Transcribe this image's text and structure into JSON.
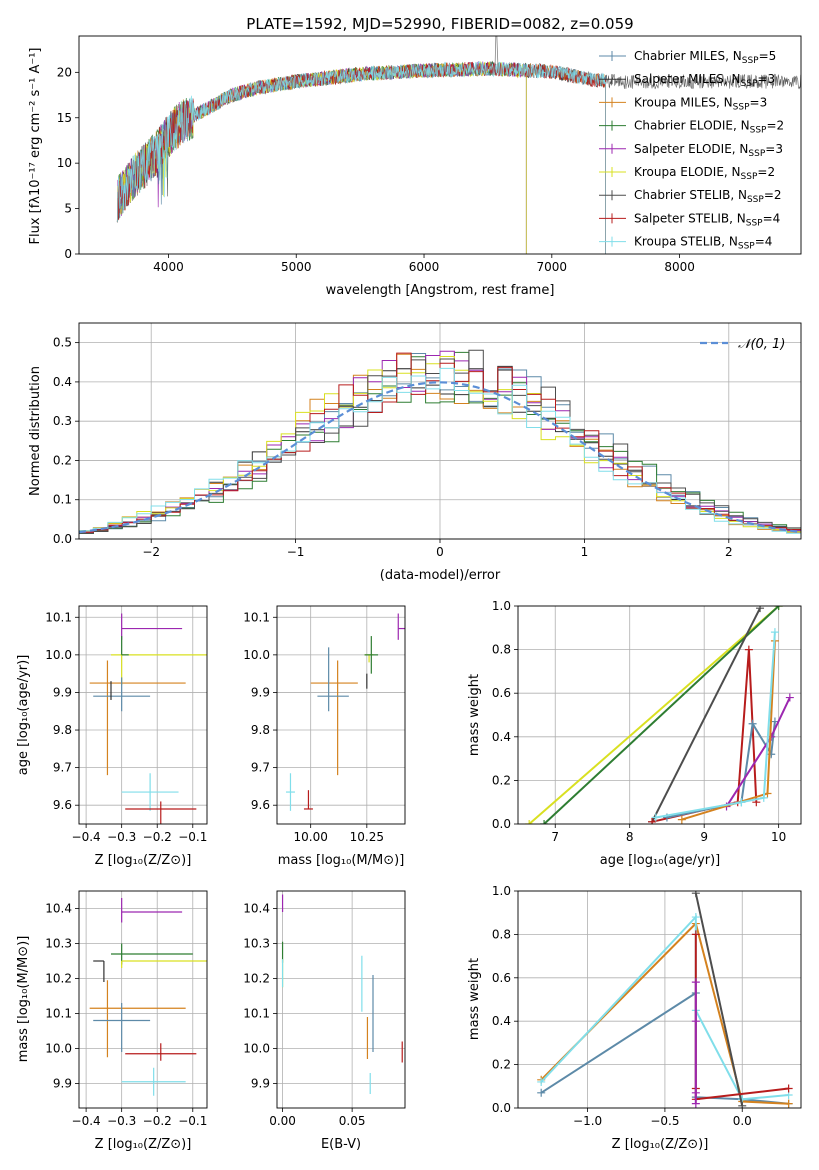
{
  "figure_title": "PLATE=1592, MJD=52990, FIBERID=0082, z=0.059",
  "colors": {
    "chabrier_miles": "#5d8aa8",
    "salpeter_miles": "#333333",
    "kroupa_miles": "#d4821f",
    "chabrier_elodie": "#2e7d32",
    "salpeter_elodie": "#9c27b0",
    "kroupa_elodie": "#d9e021",
    "chabrier_stelib": "#4d4d4d",
    "salpeter_stelib": "#b71c1c",
    "kroupa_stelib": "#80deea",
    "normal_curve": "#5b8ed6"
  },
  "chart_data": [
    {
      "id": "spectrum",
      "type": "line",
      "title": "PLATE=1592, MJD=52990, FIBERID=0082, z=0.059",
      "xlabel": "wavelength [Angstrom, rest frame]",
      "ylabel": "Flux [fλ10⁻¹⁷ erg cm⁻² s⁻¹ A⁻¹]",
      "xlim": [
        3300,
        8950
      ],
      "ylim": [
        0,
        24
      ],
      "xticks": [
        4000,
        5000,
        6000,
        7000,
        8000
      ],
      "yticks": [
        0,
        5,
        10,
        15,
        20
      ],
      "grid": false,
      "legend_position": "top-right",
      "series": [
        {
          "name": "Chabrier MILES, N",
          "sub": "SSP",
          "suffix": "=5",
          "color_key": "chabrier_miles"
        },
        {
          "name": "Salpeter MILES, N",
          "sub": "SSP",
          "suffix": "=3",
          "color_key": "salpeter_miles"
        },
        {
          "name": "Kroupa MILES, N",
          "sub": "SSP",
          "suffix": "=3",
          "color_key": "kroupa_miles"
        },
        {
          "name": "Chabrier ELODIE, N",
          "sub": "SSP",
          "suffix": "=2",
          "color_key": "chabrier_elodie"
        },
        {
          "name": "Salpeter ELODIE, N",
          "sub": "SSP",
          "suffix": "=3",
          "color_key": "salpeter_elodie"
        },
        {
          "name": "Kroupa ELODIE, N",
          "sub": "SSP",
          "suffix": "=2",
          "color_key": "kroupa_elodie"
        },
        {
          "name": "Chabrier STELIB, N",
          "sub": "SSP",
          "suffix": "=2",
          "color_key": "chabrier_stelib"
        },
        {
          "name": "Salpeter STELIB, N",
          "sub": "SSP",
          "suffix": "=4",
          "color_key": "salpeter_stelib"
        },
        {
          "name": "Kroupa STELIB, N",
          "sub": "SSP",
          "suffix": "=4",
          "color_key": "kroupa_stelib"
        }
      ],
      "continuum": [
        [
          3600,
          6
        ],
        [
          3700,
          8
        ],
        [
          3800,
          9.5
        ],
        [
          3900,
          11
        ],
        [
          4000,
          13
        ],
        [
          4100,
          14.5
        ],
        [
          4300,
          16
        ],
        [
          4500,
          17.5
        ],
        [
          4700,
          18.3
        ],
        [
          5000,
          19
        ],
        [
          5200,
          19.3
        ],
        [
          5500,
          19.8
        ],
        [
          6000,
          20.2
        ],
        [
          6500,
          20.4
        ],
        [
          7000,
          20.1
        ],
        [
          7300,
          19.2
        ],
        [
          7500,
          19
        ],
        [
          8000,
          18.9
        ],
        [
          8500,
          19
        ],
        [
          8950,
          19
        ]
      ]
    },
    {
      "id": "residuals",
      "type": "histogram",
      "xlabel": "(data-model)/error",
      "ylabel": "Normed distribution",
      "xlim": [
        -2.5,
        2.5
      ],
      "ylim": [
        0,
        0.55
      ],
      "xticks": [
        -2,
        -1,
        0,
        1,
        2
      ],
      "yticks": [
        0.0,
        0.1,
        0.2,
        0.3,
        0.4,
        0.5
      ],
      "grid": true,
      "legend_position": "top-right",
      "legend_label": "𝒩(0, 1)",
      "bin_width": 0.1
    },
    {
      "id": "age_vs_Z",
      "type": "errorbar",
      "xlabel": "Z [log₁₀(Z/Z⊙)]",
      "ylabel": "age  [log₁₀(age/yr)]",
      "xlim": [
        -0.42,
        -0.06
      ],
      "ylim": [
        9.55,
        10.13
      ],
      "xticks": [
        -0.4,
        -0.3,
        -0.2,
        -0.1
      ],
      "yticks": [
        9.6,
        9.7,
        9.8,
        9.9,
        10.0,
        10.1
      ],
      "grid": true,
      "points": [
        {
          "color_key": "salpeter_elodie",
          "x": -0.3,
          "xerr": [
            0.0,
            0.17
          ],
          "y": 10.07,
          "yerr": [
            0.03,
            0.04
          ]
        },
        {
          "color_key": "kroupa_elodie",
          "x": -0.3,
          "xerr": [
            0.03,
            0.25
          ],
          "y": 10.0,
          "yerr": [
            0.08,
            0.0
          ]
        },
        {
          "color_key": "chabrier_elodie",
          "x": -0.3,
          "xerr": [
            0.0,
            0.02
          ],
          "y": 10.0,
          "yerr": [
            0.0,
            0.05
          ]
        },
        {
          "color_key": "kroupa_miles",
          "x": -0.34,
          "xerr": [
            0.05,
            0.22
          ],
          "y": 9.925,
          "yerr": [
            0.245,
            0.06
          ]
        },
        {
          "color_key": "chabrier_miles",
          "x": -0.3,
          "xerr": [
            0.08,
            0.08
          ],
          "y": 9.89,
          "yerr": [
            0.04,
            0.05
          ]
        },
        {
          "color_key": "salpeter_miles",
          "x": -0.33,
          "xerr": [
            0.0,
            0.0
          ],
          "y": 9.93,
          "yerr": [
            0.05,
            0.0
          ]
        },
        {
          "color_key": "kroupa_stelib",
          "x": -0.22,
          "xerr": [
            0.08,
            0.08
          ],
          "y": 9.635,
          "yerr": [
            0.05,
            0.05
          ]
        },
        {
          "color_key": "salpeter_stelib",
          "x": -0.19,
          "xerr": [
            0.1,
            0.1
          ],
          "y": 9.59,
          "yerr": [
            0.05,
            0.02
          ]
        }
      ]
    },
    {
      "id": "age_vs_mass",
      "type": "errorbar",
      "xlabel": "mass [log₁₀(M/M⊙)]",
      "ylabel": "",
      "xlim": [
        9.85,
        10.42
      ],
      "ylim": [
        9.55,
        10.13
      ],
      "xticks": [
        10.0,
        10.25
      ],
      "xticklabels": [
        "10.00",
        "10.25"
      ],
      "yticks": [
        9.6,
        9.7,
        9.8,
        9.9,
        10.0,
        10.1
      ],
      "grid": true,
      "points": [
        {
          "color_key": "salpeter_elodie",
          "x": 10.39,
          "xerr": [
            0.0,
            0.03
          ],
          "y": 10.07,
          "yerr": [
            0.03,
            0.04
          ]
        },
        {
          "color_key": "kroupa_elodie",
          "x": 10.26,
          "xerr": [
            0.02,
            0.02
          ],
          "y": 10.0,
          "yerr": [
            0.02,
            0.0
          ]
        },
        {
          "color_key": "chabrier_elodie",
          "x": 10.27,
          "xerr": [
            0.03,
            0.03
          ],
          "y": 10.0,
          "yerr": [
            0.05,
            0.05
          ]
        },
        {
          "color_key": "kroupa_miles",
          "x": 10.12,
          "xerr": [
            0.12,
            0.09
          ],
          "y": 9.925,
          "yerr": [
            0.245,
            0.06
          ]
        },
        {
          "color_key": "chabrier_miles",
          "x": 10.08,
          "xerr": [
            0.05,
            0.09
          ],
          "y": 9.89,
          "yerr": [
            0.04,
            0.13
          ]
        },
        {
          "color_key": "salpeter_miles",
          "x": 10.25,
          "xerr": [
            0.0,
            0.0
          ],
          "y": 9.93,
          "yerr": [
            0.02,
            0.02
          ]
        },
        {
          "color_key": "kroupa_stelib",
          "x": 9.91,
          "xerr": [
            0.02,
            0.02
          ],
          "y": 9.635,
          "yerr": [
            0.05,
            0.05
          ]
        },
        {
          "color_key": "salpeter_stelib",
          "x": 9.99,
          "xerr": [
            0.02,
            0.02
          ],
          "y": 9.59,
          "yerr": [
            0.0,
            0.05
          ]
        }
      ]
    },
    {
      "id": "weight_vs_age",
      "type": "line",
      "xlabel": "age  [log₁₀(age/yr)]",
      "ylabel": "mass weight",
      "xlim": [
        6.5,
        10.3
      ],
      "ylim": [
        0,
        1
      ],
      "xticks": [
        7,
        8,
        9,
        10
      ],
      "yticks": [
        0.0,
        0.2,
        0.4,
        0.6,
        0.8,
        1.0
      ],
      "grid": true,
      "series": [
        {
          "color_key": "kroupa_elodie",
          "x": [
            6.65,
            10.0
          ],
          "y": [
            0.0,
            1.0
          ]
        },
        {
          "color_key": "chabrier_elodie",
          "x": [
            6.85,
            10.0
          ],
          "y": [
            0.0,
            1.0
          ]
        },
        {
          "color_key": "chabrier_stelib",
          "x": [
            8.3,
            9.75
          ],
          "y": [
            0.01,
            0.99
          ]
        },
        {
          "color_key": "salpeter_stelib",
          "x": [
            8.3,
            9.45,
            9.6,
            9.7
          ],
          "y": [
            0.01,
            0.1,
            0.8,
            0.1
          ]
        },
        {
          "color_key": "chabrier_miles",
          "x": [
            8.5,
            9.5,
            9.65,
            9.9,
            9.95
          ],
          "y": [
            0.03,
            0.1,
            0.46,
            0.32,
            0.47
          ]
        },
        {
          "color_key": "salpeter_elodie",
          "x": [
            9.3,
            9.9,
            10.15
          ],
          "y": [
            0.08,
            0.4,
            0.58
          ]
        },
        {
          "color_key": "kroupa_miles",
          "x": [
            8.7,
            9.85,
            9.95
          ],
          "y": [
            0.02,
            0.14,
            0.84
          ]
        },
        {
          "color_key": "kroupa_stelib",
          "x": [
            8.35,
            9.5,
            9.8,
            9.95
          ],
          "y": [
            0.03,
            0.1,
            0.12,
            0.88
          ]
        }
      ]
    },
    {
      "id": "mass_vs_Z",
      "type": "errorbar",
      "xlabel": "Z [log₁₀(Z/Z⊙)]",
      "ylabel": "mass [log₁₀(M/M⊙)]",
      "xlim": [
        -0.42,
        -0.06
      ],
      "ylim": [
        9.83,
        10.45
      ],
      "xticks": [
        -0.4,
        -0.3,
        -0.2,
        -0.1
      ],
      "yticks": [
        9.9,
        10.0,
        10.1,
        10.2,
        10.3,
        10.4
      ],
      "grid": true,
      "points": [
        {
          "color_key": "salpeter_elodie",
          "x": -0.3,
          "xerr": [
            0.0,
            0.17
          ],
          "y": 10.39,
          "yerr": [
            0.03,
            0.04
          ]
        },
        {
          "color_key": "chabrier_elodie",
          "x": -0.3,
          "xerr": [
            0.03,
            0.2
          ],
          "y": 10.27,
          "yerr": [
            0.03,
            0.03
          ]
        },
        {
          "color_key": "kroupa_elodie",
          "x": -0.3,
          "xerr": [
            0.0,
            0.25
          ],
          "y": 10.25,
          "yerr": [
            0.02,
            0.0
          ]
        },
        {
          "color_key": "salpeter_miles",
          "x": -0.35,
          "xerr": [
            0.03,
            0.0
          ],
          "y": 10.25,
          "yerr": [
            0.06,
            0.0
          ]
        },
        {
          "color_key": "kroupa_miles",
          "x": -0.34,
          "xerr": [
            0.05,
            0.22
          ],
          "y": 10.115,
          "yerr": [
            0.14,
            0.08
          ]
        },
        {
          "color_key": "chabrier_miles",
          "x": -0.3,
          "xerr": [
            0.08,
            0.08
          ],
          "y": 10.08,
          "yerr": [
            0.09,
            0.05
          ]
        },
        {
          "color_key": "salpeter_stelib",
          "x": -0.19,
          "xerr": [
            0.1,
            0.1
          ],
          "y": 9.985,
          "yerr": [
            0.02,
            0.03
          ]
        },
        {
          "color_key": "kroupa_stelib",
          "x": -0.21,
          "xerr": [
            0.09,
            0.09
          ],
          "y": 9.905,
          "yerr": [
            0.04,
            0.04
          ]
        }
      ]
    },
    {
      "id": "mass_vs_ebv",
      "type": "errorbar",
      "xlabel": "E(B-V)",
      "ylabel": "",
      "xlim": [
        -0.004,
        0.088
      ],
      "ylim": [
        9.83,
        10.45
      ],
      "xticks": [
        0.0,
        0.05
      ],
      "xticklabels": [
        "0.00",
        "0.05"
      ],
      "yticks": [
        9.9,
        10.0,
        10.1,
        10.2,
        10.3,
        10.4
      ],
      "grid": true,
      "points": [
        {
          "color_key": "salpeter_elodie",
          "x": 0.0,
          "xerr": [
            0.0,
            0.0
          ],
          "y": 10.415,
          "yerr": [
            0.025,
            0.025
          ]
        },
        {
          "color_key": "chabrier_elodie",
          "x": 0.0,
          "xerr": [
            0.0,
            0.0
          ],
          "y": 10.275,
          "yerr": [
            0.03,
            0.03
          ]
        },
        {
          "color_key": "kroupa_elodie",
          "x": 0.0,
          "xerr": [
            0.0,
            0.0
          ],
          "y": 10.215,
          "yerr": [
            0.04,
            0.04
          ]
        },
        {
          "color_key": "kroupa_stelib",
          "x": 0.0,
          "xerr": [
            0.0,
            0.0
          ],
          "y": 10.215,
          "yerr": [
            0.04,
            0.04
          ]
        },
        {
          "color_key": "kroupa_miles",
          "x": 0.061,
          "xerr": [
            0.0,
            0.0
          ],
          "y": 10.03,
          "yerr": [
            0.06,
            0.06
          ]
        },
        {
          "color_key": "kroupa_stelib",
          "x": 0.057,
          "xerr": [
            0.0,
            0.0
          ],
          "y": 10.185,
          "yerr": [
            0.08,
            0.08
          ]
        },
        {
          "color_key": "chabrier_miles",
          "x": 0.065,
          "xerr": [
            0.0,
            0.0
          ],
          "y": 10.1,
          "yerr": [
            0.11,
            0.11
          ]
        },
        {
          "color_key": "salpeter_stelib",
          "x": 0.086,
          "xerr": [
            0.0,
            0.0
          ],
          "y": 9.99,
          "yerr": [
            0.03,
            0.03
          ]
        },
        {
          "color_key": "kroupa_stelib",
          "x": 0.063,
          "xerr": [
            0.0,
            0.0
          ],
          "y": 9.9,
          "yerr": [
            0.03,
            0.03
          ]
        }
      ]
    },
    {
      "id": "weight_vs_Z",
      "type": "line",
      "xlabel": "Z [log₁₀(Z/Z⊙)]",
      "ylabel": "mass weight",
      "xlim": [
        -1.45,
        0.38
      ],
      "ylim": [
        0,
        1
      ],
      "xticks": [
        -1.0,
        -0.5,
        0.0
      ],
      "xticklabels": [
        "−1.0",
        "−0.5",
        "0.0"
      ],
      "yticks": [
        0.0,
        0.2,
        0.4,
        0.6,
        0.8,
        1.0
      ],
      "grid": true,
      "series": [
        {
          "color_key": "chabrier_miles",
          "x": [
            -1.3,
            -0.3,
            -0.3,
            0.0,
            0.3
          ],
          "y": [
            0.07,
            0.53,
            0.05,
            0.04,
            0.02
          ]
        },
        {
          "color_key": "kroupa_miles",
          "x": [
            -1.3,
            -0.3,
            0.0,
            0.3
          ],
          "y": [
            0.13,
            0.85,
            0.03,
            0.02
          ]
        },
        {
          "color_key": "kroupa_stelib",
          "x": [
            -1.3,
            -0.3,
            -0.3,
            0.0,
            0.3
          ],
          "y": [
            0.12,
            0.88,
            0.45,
            0.04,
            0.06
          ]
        },
        {
          "color_key": "chabrier_stelib",
          "x": [
            -0.3,
            0.0
          ],
          "y": [
            0.99,
            0.01
          ]
        },
        {
          "color_key": "salpeter_stelib",
          "x": [
            -0.3,
            -0.3,
            -0.3,
            0.3
          ],
          "y": [
            0.8,
            0.09,
            0.04,
            0.09
          ]
        },
        {
          "color_key": "salpeter_elodie",
          "x": [
            -0.3,
            -0.3,
            -0.3,
            -0.3
          ],
          "y": [
            0.02,
            0.4,
            0.58,
            0.07
          ]
        }
      ]
    }
  ]
}
